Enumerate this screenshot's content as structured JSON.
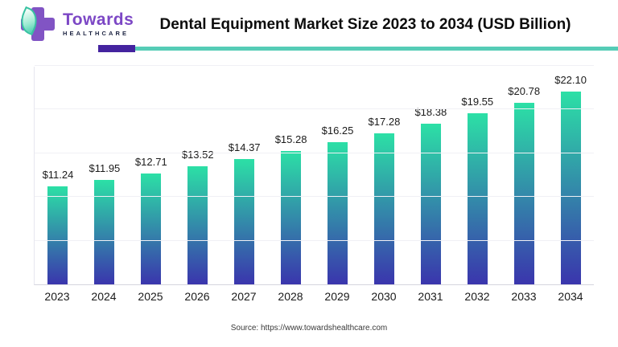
{
  "header": {
    "logo_name": "Towards",
    "logo_sub": "HEALTHCARE",
    "title": "Dental Equipment Market Size 2023 to 2034 (USD Billion)"
  },
  "chart_data": {
    "type": "bar",
    "title": "Dental Equipment Market Size 2023 to 2034 (USD Billion)",
    "categories": [
      "2023",
      "2024",
      "2025",
      "2026",
      "2027",
      "2028",
      "2029",
      "2030",
      "2031",
      "2032",
      "2033",
      "2034"
    ],
    "values": [
      11.24,
      11.95,
      12.71,
      13.52,
      14.37,
      15.28,
      16.25,
      17.28,
      18.38,
      19.55,
      20.78,
      22.1
    ],
    "value_labels": [
      "$11.24",
      "$11.95",
      "$12.71",
      "$13.52",
      "$14.37",
      "$15.28",
      "$16.25",
      "$17.28",
      "$18.38",
      "$19.55",
      "$20.78",
      "$22.10"
    ],
    "xlabel": "",
    "ylabel": "",
    "ylim": [
      0,
      25
    ],
    "gridline_step": 5,
    "grid": "horizontal-faint",
    "legend": "none",
    "bar_gradient_top": "#2ce0a6",
    "bar_gradient_bottom": "#3a35ad"
  },
  "footer": {
    "source": "Source: https://www.towardshealthcare.com"
  },
  "colors": {
    "accent_purple": "#44239f",
    "accent_teal": "#55ccb6",
    "logo_purple": "#7c47c5",
    "logo_navy": "#1d2442",
    "title_text": "#0d0d0d",
    "background": "#ffffff"
  }
}
